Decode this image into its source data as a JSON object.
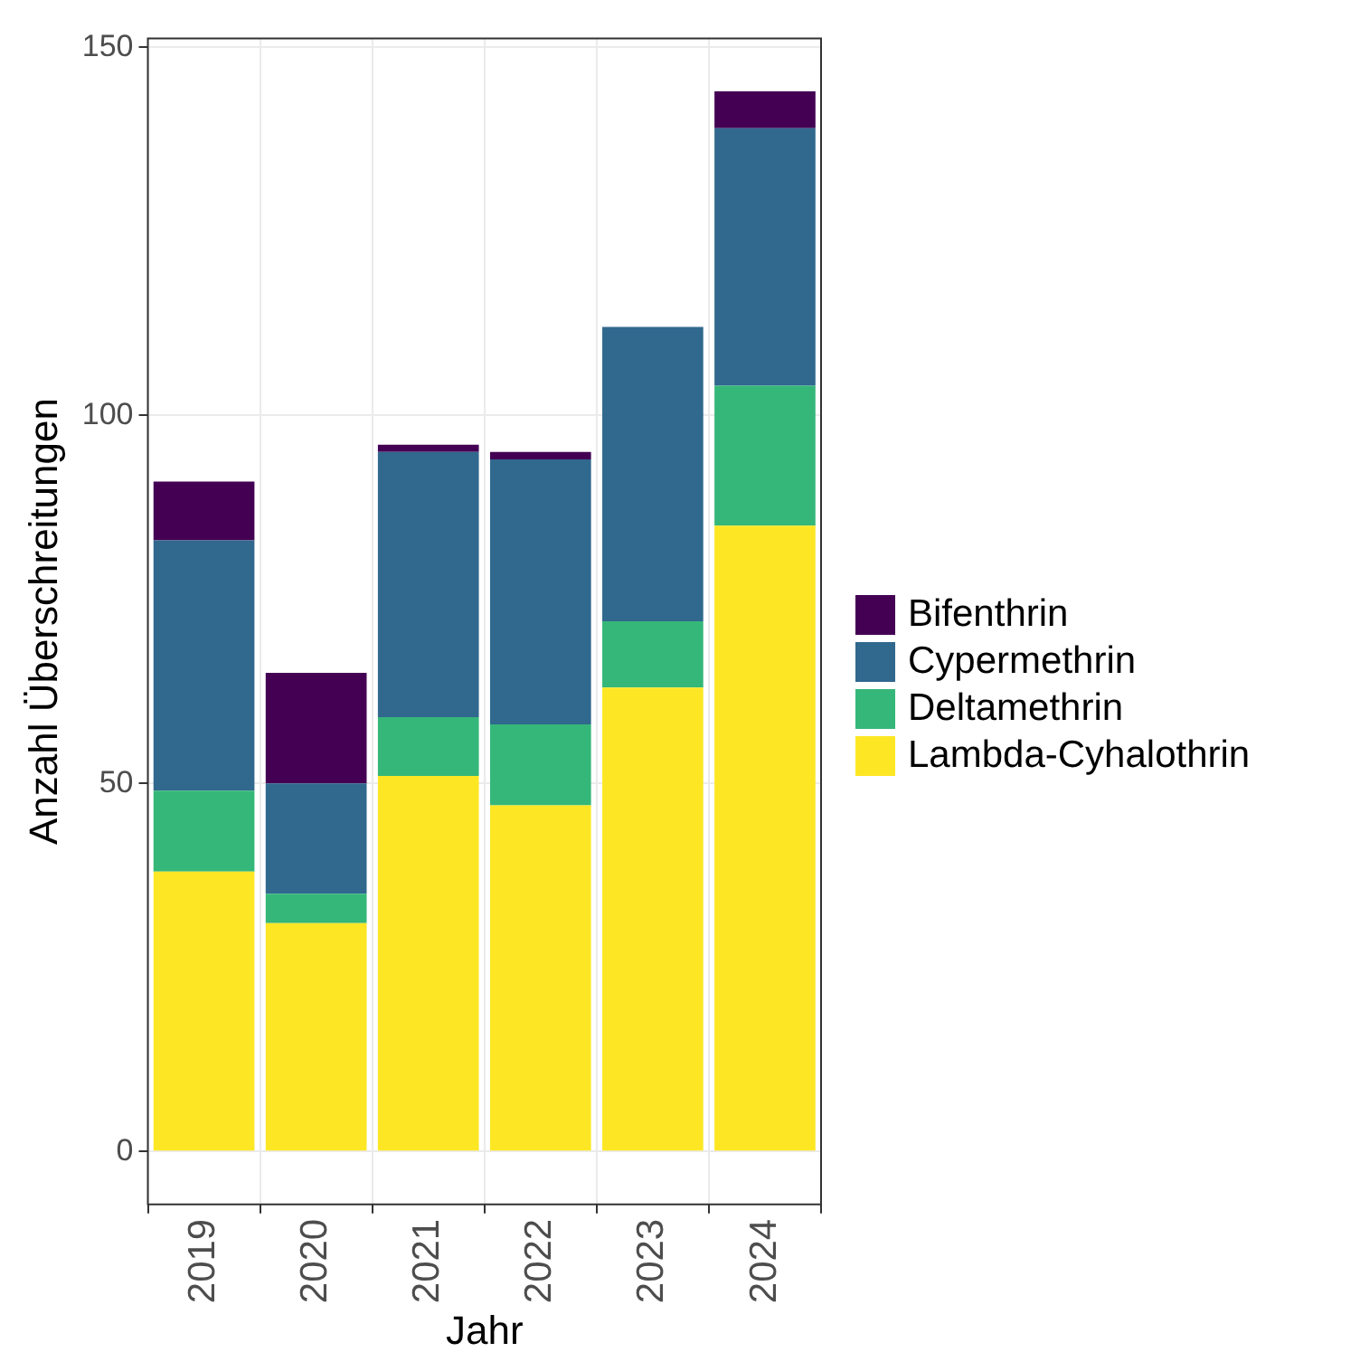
{
  "chart_data": {
    "type": "bar",
    "stacked": true,
    "xlabel": "Jahr",
    "ylabel": "Anzahl Überschreitungen",
    "categories": [
      "2019",
      "2020",
      "2021",
      "2022",
      "2023",
      "2024"
    ],
    "series": [
      {
        "name": "Lambda-Cyhalothrin",
        "color": "#fde725",
        "values": [
          38,
          31,
          51,
          47,
          63,
          85
        ]
      },
      {
        "name": "Deltamethrin",
        "color": "#35b779",
        "values": [
          11,
          4,
          8,
          11,
          9,
          19
        ]
      },
      {
        "name": "Cypermethrin",
        "color": "#31688e",
        "values": [
          34,
          15,
          36,
          36,
          40,
          35
        ]
      },
      {
        "name": "Bifenthrin",
        "color": "#440154",
        "values": [
          8,
          15,
          1,
          1,
          0,
          5
        ]
      }
    ],
    "ylim": [
      -7.2,
      151.2
    ],
    "yticks": [
      0,
      50,
      100,
      150
    ],
    "grid": true,
    "legend": "right"
  }
}
